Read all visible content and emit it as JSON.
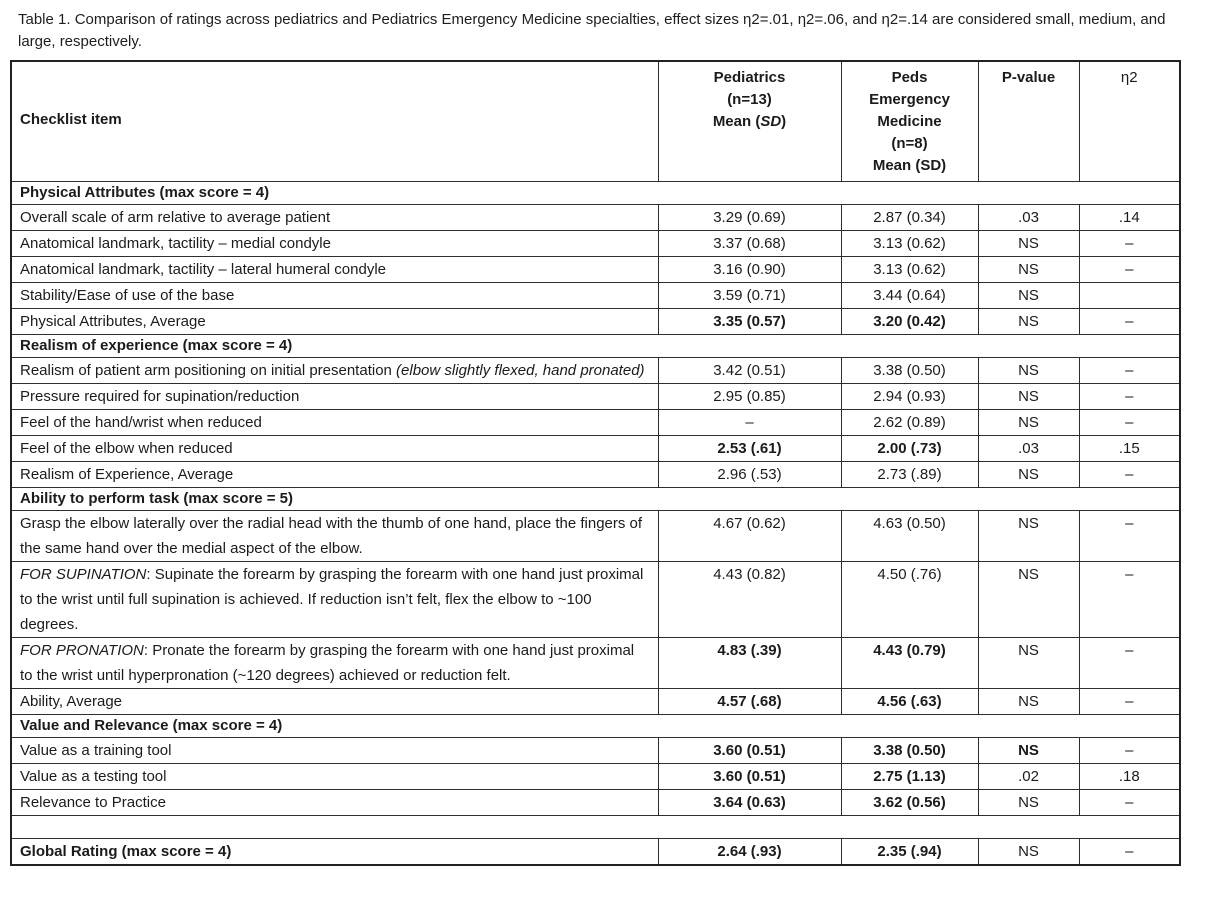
{
  "caption": "Table 1.  Comparison of ratings across pediatrics and Pediatrics Emergency Medicine specialties, effect sizes η2=.01, η2=.06, and η2=.14 are considered small, medium, and large, respectively.",
  "table": {
    "header": {
      "checklist_label": "Checklist item",
      "cols": [
        {
          "name": "pediatrics-column-header",
          "lines": [
            [
              {
                "t": "Pediatrics"
              }
            ],
            [
              {
                "t": "(n=13)"
              }
            ],
            [
              {
                "t": "Mean ("
              },
              {
                "t": "SD",
                "i": true
              },
              {
                "t": ")"
              }
            ]
          ],
          "bold": true
        },
        {
          "name": "peds-em-column-header",
          "lines": [
            [
              {
                "t": "Peds"
              }
            ],
            [
              {
                "t": "Emergency"
              }
            ],
            [
              {
                "t": "Medicine"
              }
            ],
            [
              {
                "t": "(n=8)"
              }
            ],
            [
              {
                "t": "Mean (SD)"
              }
            ]
          ],
          "bold": true
        },
        {
          "name": "p-value-column-header",
          "lines": [
            [
              {
                "t": "P-value"
              }
            ]
          ],
          "bold": true
        },
        {
          "name": "eta-squared-column-header",
          "lines": [
            [
              {
                "t": "η2"
              }
            ]
          ],
          "bold": false
        }
      ]
    },
    "rows": [
      {
        "type": "section",
        "label": "Physical Attributes (max score = 4)"
      },
      {
        "type": "item",
        "label": "Overall scale of arm relative to average patient",
        "values": [
          "3.29 (0.69)",
          "2.87 (0.34)",
          ".03",
          ".14"
        ],
        "bold": [
          false,
          false,
          false,
          false
        ]
      },
      {
        "type": "item",
        "label": "Anatomical landmark, tactility – medial condyle",
        "values": [
          "3.37 (0.68)",
          "3.13 (0.62)",
          "NS",
          "–"
        ],
        "bold": [
          false,
          false,
          false,
          false
        ]
      },
      {
        "type": "item",
        "label": "Anatomical landmark, tactility – lateral humeral condyle",
        "values": [
          "3.16 (0.90)",
          "3.13 (0.62)",
          "NS",
          "–"
        ],
        "bold": [
          false,
          false,
          false,
          false
        ]
      },
      {
        "type": "item",
        "label": "Stability/Ease of use of the base",
        "values": [
          "3.59 (0.71)",
          "3.44 (0.64)",
          "NS",
          ""
        ],
        "bold": [
          false,
          false,
          false,
          false
        ]
      },
      {
        "type": "item",
        "label": "Physical Attributes, Average",
        "values": [
          "3.35 (0.57)",
          "3.20 (0.42)",
          "NS",
          "–"
        ],
        "bold": [
          true,
          true,
          false,
          false
        ]
      },
      {
        "type": "section",
        "label": "Realism of experience (max score = 4)"
      },
      {
        "type": "item",
        "label": [
          {
            "t": "Realism of patient arm positioning on initial presentation "
          },
          {
            "t": "(elbow slightly flexed, hand pronated)",
            "i": true
          }
        ],
        "values": [
          "3.42 (0.51)",
          "3.38 (0.50)",
          "NS",
          "–"
        ],
        "bold": [
          false,
          false,
          false,
          false
        ]
      },
      {
        "type": "item",
        "label": "Pressure required for supination/reduction",
        "values": [
          "2.95 (0.85)",
          "2.94 (0.93)",
          "NS",
          "–"
        ],
        "bold": [
          false,
          false,
          false,
          false
        ]
      },
      {
        "type": "item",
        "label": "Feel of the hand/wrist when reduced",
        "values": [
          "–",
          "2.62 (0.89)",
          "NS",
          "–"
        ],
        "bold": [
          false,
          false,
          false,
          false
        ]
      },
      {
        "type": "item",
        "label": "Feel of the elbow when reduced",
        "values": [
          "2.53 (.61)",
          "2.00 (.73)",
          ".03",
          ".15"
        ],
        "bold": [
          true,
          true,
          false,
          false
        ]
      },
      {
        "type": "item",
        "label": "Realism of Experience, Average",
        "values": [
          "2.96 (.53)",
          "2.73 (.89)",
          "NS",
          "–"
        ],
        "bold": [
          false,
          false,
          false,
          false
        ]
      },
      {
        "type": "section",
        "label": "Ability to perform task (max score = 5)"
      },
      {
        "type": "item",
        "label": "Grasp the elbow laterally over the radial head with the thumb of one hand, place the fingers of the same hand over the medial aspect of the elbow.",
        "values": [
          "4.67 (0.62)",
          "4.63 (0.50)",
          "NS",
          "–"
        ],
        "bold": [
          false,
          false,
          false,
          false
        ]
      },
      {
        "type": "item",
        "label": [
          {
            "t": "FOR SUPINATION",
            "i": true
          },
          {
            "t": ": Supinate the forearm by grasping the forearm with one hand just proximal to the wrist until full supination is achieved. If reduction isn’t felt, flex the elbow to ~100 degrees."
          }
        ],
        "values": [
          "4.43 (0.82)",
          "4.50 (.76)",
          "NS",
          "–"
        ],
        "bold": [
          false,
          false,
          false,
          false
        ]
      },
      {
        "type": "item",
        "label": [
          {
            "t": "FOR PRONATION",
            "i": true
          },
          {
            "t": ": Pronate the forearm by grasping the forearm with one hand just proximal to the wrist until hyperpronation (~120 degrees) achieved or reduction felt."
          }
        ],
        "values": [
          "4.83 (.39)",
          "4.43 (0.79)",
          "NS",
          "–"
        ],
        "bold": [
          true,
          true,
          false,
          false
        ]
      },
      {
        "type": "item",
        "label": "Ability, Average",
        "values": [
          "4.57 (.68)",
          "4.56 (.63)",
          "NS",
          "–"
        ],
        "bold": [
          true,
          true,
          false,
          false
        ]
      },
      {
        "type": "section",
        "label": "Value and Relevance (max score = 4)"
      },
      {
        "type": "item",
        "label": "Value as a training tool",
        "values": [
          "3.60 (0.51)",
          "3.38 (0.50)",
          "NS",
          "–"
        ],
        "bold": [
          true,
          true,
          true,
          false
        ]
      },
      {
        "type": "item",
        "label": "Value as a testing tool",
        "values": [
          "3.60 (0.51)",
          "2.75 (1.13)",
          ".02",
          ".18"
        ],
        "bold": [
          true,
          true,
          false,
          false
        ]
      },
      {
        "type": "item",
        "label": "Relevance to Practice",
        "values": [
          "3.64 (0.63)",
          "3.62 (0.56)",
          "NS",
          "–"
        ],
        "bold": [
          true,
          true,
          false,
          false
        ]
      },
      {
        "type": "spacer"
      },
      {
        "type": "item",
        "label": "Global Rating (max score = 4)",
        "label_bold": true,
        "values": [
          "2.64 (.93)",
          "2.35 (.94)",
          "NS",
          "–"
        ],
        "bold": [
          true,
          true,
          false,
          false
        ]
      }
    ]
  }
}
